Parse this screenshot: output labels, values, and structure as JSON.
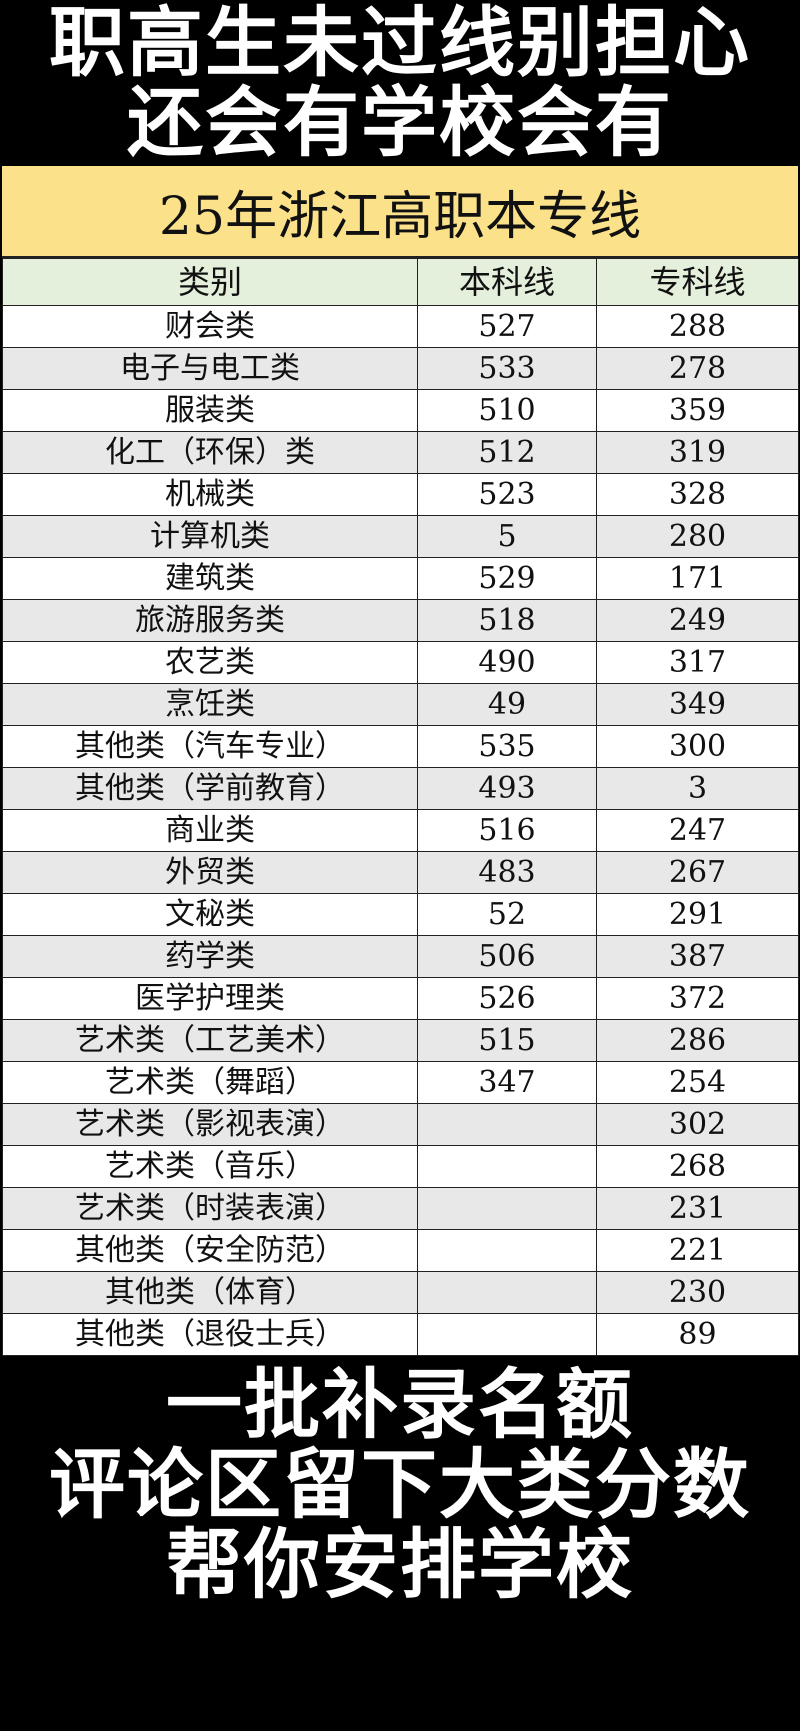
{
  "title": "25年浙江高职本专线",
  "headers": [
    "类别",
    "本科线",
    "专科线"
  ],
  "rows": [
    [
      "财会类",
      "527",
      "288"
    ],
    [
      "电子与电工类",
      "533",
      "278"
    ],
    [
      "服装类",
      "510",
      "359"
    ],
    [
      "化工（环保）类",
      "512",
      "319"
    ],
    [
      "机械类",
      "523",
      "328"
    ],
    [
      "计算机类",
      "5",
      "280"
    ],
    [
      "建筑类",
      "529",
      "171"
    ],
    [
      "旅游服务类",
      "518",
      "249"
    ],
    [
      "农艺类",
      "490",
      "317"
    ],
    [
      "烹饪类",
      "49",
      "349"
    ],
    [
      "其他类（汽车专业）",
      "535",
      "300"
    ],
    [
      "其他类（学前教育）",
      "493",
      "3"
    ],
    [
      "商业类",
      "516",
      "247"
    ],
    [
      "外贸类",
      "483",
      "267"
    ],
    [
      "文秘类",
      "52",
      "291"
    ],
    [
      "药学类",
      "506",
      "387"
    ],
    [
      "医学护理类",
      "526",
      "372"
    ],
    [
      "艺术类（工艺美术）",
      "515",
      "286"
    ],
    [
      "艺术类（舞蹈）",
      "347",
      "254"
    ],
    [
      "艺术类（影视表演）",
      "",
      "302"
    ],
    [
      "艺术类（音乐）",
      "",
      "268"
    ],
    [
      "艺术类（时装表演）",
      "",
      "231"
    ],
    [
      "其他类（安全防范）",
      "",
      "221"
    ],
    [
      "其他类（体育）",
      "",
      "230"
    ],
    [
      "其他类（退役士兵）",
      "",
      "89"
    ]
  ],
  "overlay_lines": [
    "职高生未过线别担心",
    "还会有学校会有",
    "一批补录名额",
    "评论区留下大类分数",
    "帮你安排学校"
  ],
  "colors": {
    "title_bg": "#fbe28a",
    "header_bg": "#e4f0dc",
    "stripe": "#e8e8e8"
  }
}
